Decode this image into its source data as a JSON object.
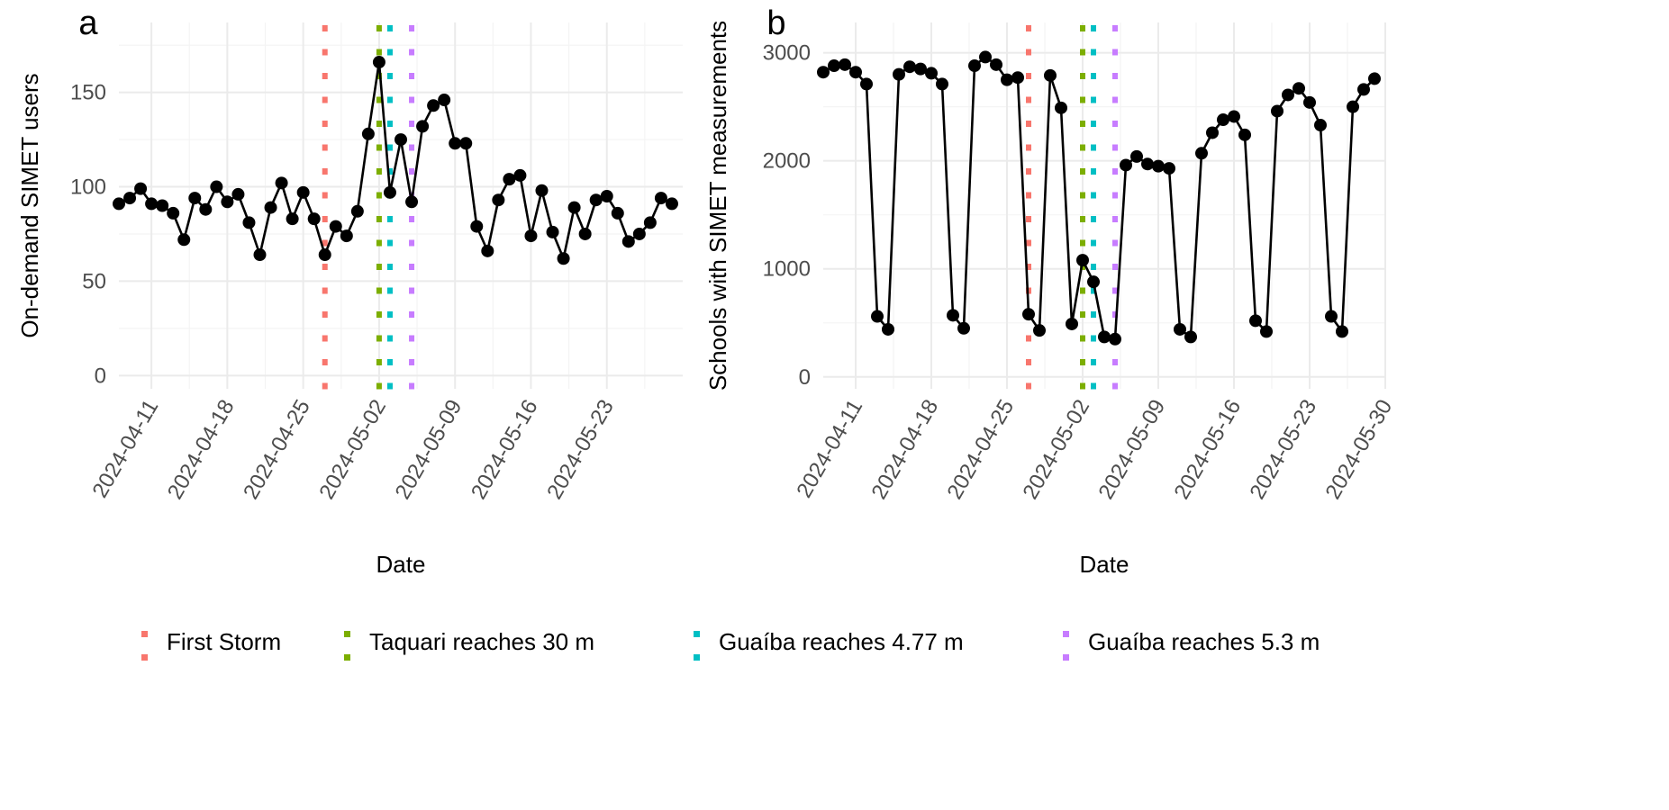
{
  "chart_data": [
    {
      "type": "line",
      "panel_label": "a",
      "xlabel": "Date",
      "ylabel": "On-demand SIMET users",
      "x_start": "2024-04-08",
      "xlim": [
        "2024-04-08",
        "2024-05-30"
      ],
      "ylim": [
        -7,
        187
      ],
      "y_ticks": [
        0,
        50,
        100,
        150
      ],
      "x_tick_labels": [
        "2024-04-11",
        "2024-04-18",
        "2024-04-25",
        "2024-05-02",
        "2024-05-09",
        "2024-05-16",
        "2024-05-23"
      ],
      "grid": true,
      "series": [
        {
          "name": "On-demand SIMET users",
          "values": [
            91,
            94,
            99,
            91,
            90,
            86,
            72,
            94,
            88,
            100,
            92,
            96,
            81,
            64,
            89,
            102,
            83,
            97,
            83,
            64,
            79,
            74,
            87,
            128,
            166,
            97,
            125,
            92,
            132,
            143,
            146,
            123,
            123,
            79,
            66,
            93,
            104,
            106,
            74,
            98,
            76,
            62,
            89,
            75,
            93,
            95,
            86,
            71,
            75,
            81,
            94,
            91
          ]
        }
      ]
    },
    {
      "type": "line",
      "panel_label": "b",
      "xlabel": "Date",
      "ylabel": "Schools with SIMET measurements",
      "x_start": "2024-04-08",
      "xlim": [
        "2024-04-08",
        "2024-05-30"
      ],
      "ylim": [
        -110,
        3280
      ],
      "y_ticks": [
        0,
        1000,
        2000,
        3000
      ],
      "x_tick_labels": [
        "2024-04-11",
        "2024-04-18",
        "2024-04-25",
        "2024-05-02",
        "2024-05-09",
        "2024-05-16",
        "2024-05-23",
        "2024-05-30"
      ],
      "grid": true,
      "series": [
        {
          "name": "Schools with SIMET measurements",
          "values": [
            2820,
            2880,
            2890,
            2820,
            2710,
            560,
            440,
            2800,
            2870,
            2850,
            2810,
            2710,
            570,
            450,
            2880,
            2960,
            2890,
            2750,
            2770,
            580,
            430,
            2790,
            2490,
            490,
            1080,
            880,
            370,
            350,
            1960,
            2040,
            1970,
            1950,
            1930,
            440,
            370,
            2070,
            2260,
            2380,
            2410,
            2240,
            520,
            420,
            2460,
            2610,
            2670,
            2540,
            2330,
            560,
            420,
            2500,
            2660,
            2760
          ]
        }
      ]
    }
  ],
  "events": [
    {
      "label": "First Storm",
      "date": "2024-04-27",
      "color": "#F8766D"
    },
    {
      "label": "Taquari reaches 30 m",
      "date": "2024-05-02",
      "color": "#7CAE00"
    },
    {
      "label": "Guaíba reaches 4.77 m",
      "date": "2024-05-03",
      "color": "#00BFC4"
    },
    {
      "label": "Guaíba reaches 5.3 m",
      "date": "2024-05-05",
      "color": "#C77CFF"
    }
  ],
  "colors": {
    "line": "#000000",
    "grid_major": "#EBEBEB",
    "grid_minor": "#F4F4F4",
    "axis_text": "#4D4D4D",
    "title_text": "#000000"
  }
}
